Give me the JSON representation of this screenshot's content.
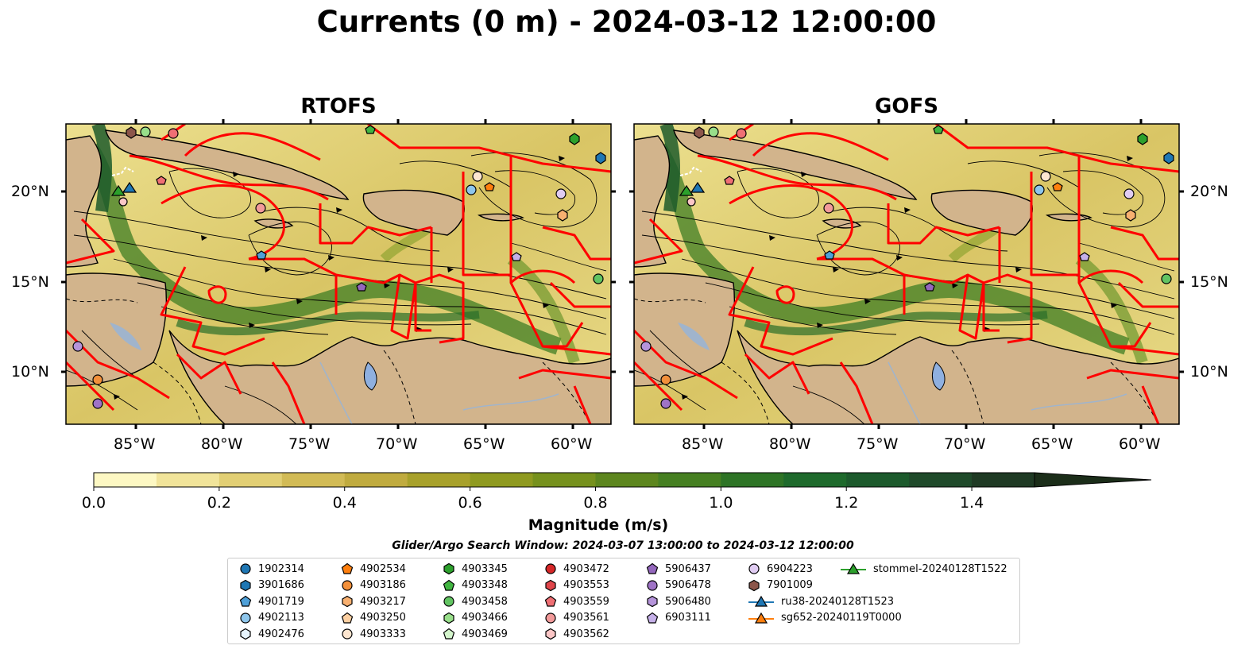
{
  "title": "Currents (0 m) - 2024-03-12 12:00:00",
  "panels": [
    {
      "title": "RTOFS"
    },
    {
      "title": "GOFS"
    }
  ],
  "lat_labels": [
    "20°N",
    "15°N",
    "10°N"
  ],
  "lon_labels": [
    "85°W",
    "80°W",
    "75°W",
    "70°W",
    "65°W",
    "60°W"
  ],
  "colorbar": {
    "label": "Magnitude (m/s)",
    "ticks": [
      "0.0",
      "0.2",
      "0.4",
      "0.6",
      "0.8",
      "1.0",
      "1.2",
      "1.4"
    ],
    "range": [
      0,
      1.5
    ],
    "extend": "max",
    "colors": [
      "#fdf8c3",
      "#f1e49a",
      "#e2cf74",
      "#d2bb56",
      "#c0ab3f",
      "#a8a12b",
      "#8f9a20",
      "#76911d",
      "#5d861e",
      "#468022",
      "#2e7426",
      "#1e6a2c",
      "#1c5a2c",
      "#1f4a2a",
      "#1f3a24",
      "#1b2d19"
    ]
  },
  "search_window": "Glider/Argo Search Window: 2024-03-07 13:00:00 to 2024-03-12 12:00:00",
  "colors": {
    "land": "#d2b48c",
    "boundary": "#ff0000",
    "water_body": "#8fb0e0",
    "river": "#a0b4cc"
  },
  "legend": [
    {
      "label": "1902314",
      "marker": "circle",
      "color": "#1f77b4"
    },
    {
      "label": "3901686",
      "marker": "hexagon",
      "color": "#1f77b4"
    },
    {
      "label": "4901719",
      "marker": "pentagon",
      "color": "#4fa0d8"
    },
    {
      "label": "4902113",
      "marker": "circle",
      "color": "#8ec6ec"
    },
    {
      "label": "4902476",
      "marker": "hexagon",
      "color": "#e6f3fc"
    },
    {
      "label": "4902534",
      "marker": "pentagon",
      "color": "#ff7f0e"
    },
    {
      "label": "4903186",
      "marker": "circle",
      "color": "#f3903a"
    },
    {
      "label": "4903217",
      "marker": "hexagon",
      "color": "#f8b070"
    },
    {
      "label": "4903250",
      "marker": "pentagon",
      "color": "#fdd0a2"
    },
    {
      "label": "4903333",
      "marker": "circle",
      "color": "#fde6d0"
    },
    {
      "label": "4903345",
      "marker": "hexagon",
      "color": "#2ca02c"
    },
    {
      "label": "4903348",
      "marker": "pentagon",
      "color": "#41b541"
    },
    {
      "label": "4903458",
      "marker": "circle",
      "color": "#62c462"
    },
    {
      "label": "4903466",
      "marker": "hexagon",
      "color": "#98df8a"
    },
    {
      "label": "4903469",
      "marker": "pentagon",
      "color": "#d4f5cc"
    },
    {
      "label": "4903472",
      "marker": "circle",
      "color": "#d62728"
    },
    {
      "label": "4903553",
      "marker": "hexagon",
      "color": "#e0454a"
    },
    {
      "label": "4903559",
      "marker": "pentagon",
      "color": "#ef6f74"
    },
    {
      "label": "4903561",
      "marker": "circle",
      "color": "#f29a9a"
    },
    {
      "label": "4903562",
      "marker": "hexagon",
      "color": "#fbc6c6"
    },
    {
      "label": "5906437",
      "marker": "pentagon",
      "color": "#9467bd"
    },
    {
      "label": "5906478",
      "marker": "circle",
      "color": "#9f73c6"
    },
    {
      "label": "5906480",
      "marker": "hexagon",
      "color": "#b594da"
    },
    {
      "label": "6903111",
      "marker": "pentagon",
      "color": "#c5b0e8"
    },
    {
      "label": "6904223",
      "marker": "circle",
      "color": "#e0ccf2"
    },
    {
      "label": "7901009",
      "marker": "hexagon",
      "color": "#8c564b"
    },
    {
      "label": "ru38-20240128T1523",
      "marker": "triangle-line",
      "color": "#1f77b4"
    },
    {
      "label": "sg652-20240119T0000",
      "marker": "triangle-line",
      "color": "#ff7f0e"
    },
    {
      "label": "stommel-20240128T1522",
      "marker": "triangle-line",
      "color": "#2ca02c"
    }
  ]
}
